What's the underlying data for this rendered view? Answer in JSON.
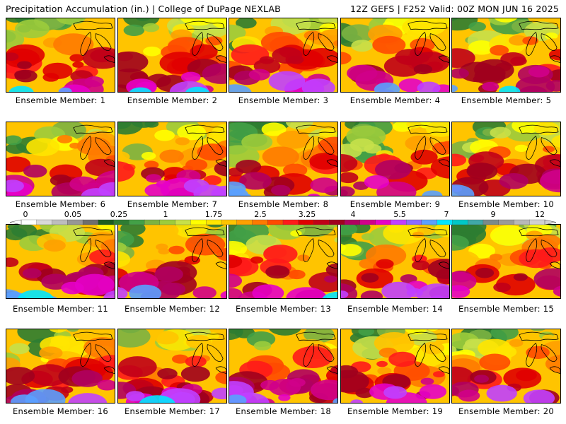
{
  "header": {
    "left": "Precipitation Accumulation (in.) | College of DuPage NEXLAB",
    "right": "12Z GEFS | F252 Valid: 00Z MON JUN 16 2025"
  },
  "panels": [
    {
      "caption": "Ensemble Member: 1"
    },
    {
      "caption": "Ensemble Member: 2"
    },
    {
      "caption": "Ensemble Member: 3"
    },
    {
      "caption": "Ensemble Member: 4"
    },
    {
      "caption": "Ensemble Member: 5"
    },
    {
      "caption": "Ensemble Member: 6"
    },
    {
      "caption": "Ensemble Member: 7"
    },
    {
      "caption": "Ensemble Member: 8"
    },
    {
      "caption": "Ensemble Member: 9"
    },
    {
      "caption": "Ensemble Member: 10"
    },
    {
      "caption": "Ensemble Member: 11"
    },
    {
      "caption": "Ensemble Member: 12"
    },
    {
      "caption": "Ensemble Member: 13"
    },
    {
      "caption": "Ensemble Member: 14"
    },
    {
      "caption": "Ensemble Member: 15"
    },
    {
      "caption": "Ensemble Member: 16"
    },
    {
      "caption": "Ensemble Member: 17"
    },
    {
      "caption": "Ensemble Member: 18"
    },
    {
      "caption": "Ensemble Member: 19"
    },
    {
      "caption": "Ensemble Member: 20"
    }
  ],
  "colorbar": {
    "labels": [
      "0",
      "0.05",
      "0.25",
      "1",
      "1.75",
      "2.5",
      "3.25",
      "4",
      "5.5",
      "7",
      "9",
      "12"
    ],
    "colors": [
      "#ffffff",
      "#d9d9d9",
      "#bdbdbd",
      "#969696",
      "#6e6e6e",
      "#1b5e20",
      "#2e7d32",
      "#43a047",
      "#7cb342",
      "#9ccc3c",
      "#c6e04a",
      "#ffff00",
      "#ffe600",
      "#ffc400",
      "#ffa000",
      "#ff7a00",
      "#ff4a00",
      "#ff1a1a",
      "#e00000",
      "#c00018",
      "#a0001e",
      "#b00060",
      "#d0008a",
      "#e600c8",
      "#c040ff",
      "#8a6cff",
      "#5aa0ff",
      "#00e5ff",
      "#00c8c8",
      "#40a8a8",
      "#7a8a8a",
      "#9a9a9a",
      "#b8b8b8",
      "#d0d0d0"
    ]
  }
}
